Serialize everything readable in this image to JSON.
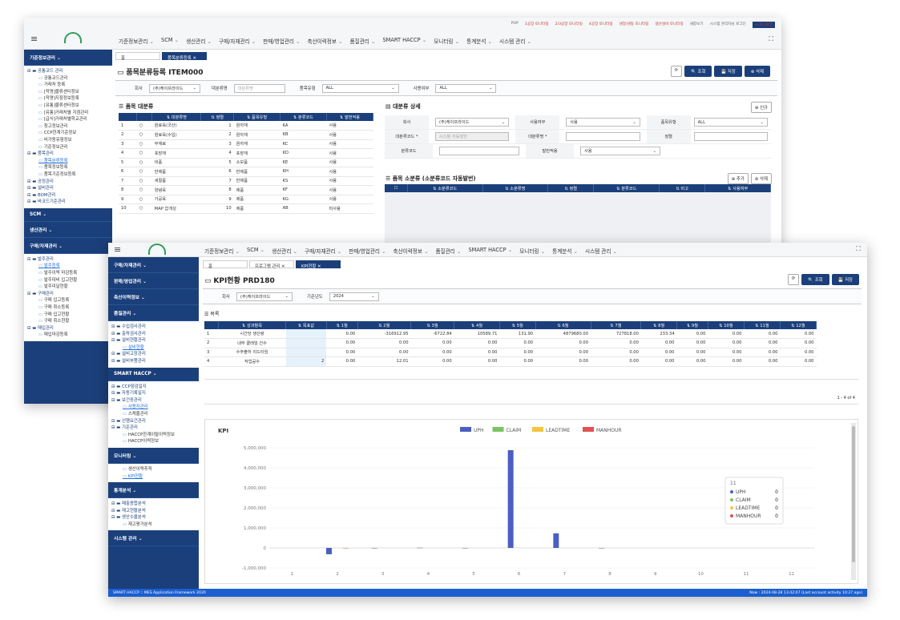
{
  "w1": {
    "links": [
      "POP",
      "1공장 모니터링",
      "2/3공장 모니터링",
      "4공장 모니터링",
      "냉장/냉동 모니터링",
      "생산설비 모니터링"
    ],
    "links_gray": [
      "새창보기",
      "시스템 관리자님 로그인"
    ],
    "logout": "⇥ 로그아웃",
    "nav": [
      "기준정보관리",
      "SCM",
      "생산관리",
      "구매/자재관리",
      "판매/영업관리",
      "축산이력정보",
      "품질관리",
      "SMART HACCP",
      "모니터링",
      "통계분석",
      "시스템 관리"
    ],
    "sidebar_sections": [
      "기준정보관리",
      "SCM",
      "생산관리",
      "구매/자재관리"
    ],
    "tree": [
      {
        "t": "f",
        "l": "공통코드 관리"
      },
      {
        "t": "c",
        "l": "공통코드관리"
      },
      {
        "t": "c",
        "l": "거래처 등록"
      },
      {
        "t": "c",
        "l": "[작명]물류센터정보"
      },
      {
        "t": "c",
        "l": "[작명]지점정보등록"
      },
      {
        "t": "c",
        "l": "[유통]물류센터정보"
      },
      {
        "t": "c",
        "l": "[유통]거래처별 지점관리"
      },
      {
        "t": "c",
        "l": "[급식]거래처별학교관리"
      },
      {
        "t": "c",
        "l": "창고정보관리"
      },
      {
        "t": "c",
        "l": "CCP한계기준정보"
      },
      {
        "t": "c",
        "l": "비가동유형정보"
      },
      {
        "t": "c",
        "l": "기준정보관리"
      },
      {
        "t": "f",
        "l": "품목관리"
      },
      {
        "t": "c",
        "l": "품목분류등록",
        "a": 1
      },
      {
        "t": "c",
        "l": "품목정보등록"
      },
      {
        "t": "c",
        "l": "품목기준정보등록"
      },
      {
        "t": "f",
        "l": "공정관리"
      },
      {
        "t": "f",
        "l": "설비관리"
      },
      {
        "t": "f",
        "l": "BOM관리"
      },
      {
        "t": "f",
        "l": "바코드기준관리"
      }
    ],
    "tree2": [
      {
        "t": "f",
        "l": "발주관리"
      },
      {
        "t": "c",
        "l": "발주등록",
        "a": 1
      },
      {
        "t": "c",
        "l": "발주이력 마감등록"
      },
      {
        "t": "c",
        "l": "발주대비 입고현황"
      },
      {
        "t": "c",
        "l": "발주미달현황"
      },
      {
        "t": "f",
        "l": "구매관리"
      },
      {
        "t": "c",
        "l": "구매 입고등록"
      },
      {
        "t": "c",
        "l": "구매 취소등록"
      },
      {
        "t": "c",
        "l": "구매 입고현황"
      },
      {
        "t": "c",
        "l": "구매 취소현황"
      },
      {
        "t": "f",
        "l": "매입관리"
      },
      {
        "t": "c",
        "l": "매입마감등록"
      }
    ],
    "tabs": [
      "홈",
      "품목분류등록  ✕"
    ],
    "title": "품목분류등록 ITEM000",
    "btn_search": "🔍 조회",
    "btn_save": "💾 저장",
    "btn_del": "⊗ 삭제",
    "f_company": "회사",
    "f_company_val": "(주)케이프라이드",
    "f_major": "대분류명",
    "f_major_ph": "대분류명",
    "f_type": "품목유형",
    "f_type_val": "ALL",
    "f_use": "사용여부",
    "f_use_val": "ALL",
    "grid_title": "품목 대분류",
    "grid_cols": [
      "대분류명",
      "정렬",
      "품목유형",
      "분류코드",
      "발번적용"
    ],
    "grid_rows": [
      [
        "1",
        "원료육(국산)",
        "1",
        "원자재",
        "KA",
        "사용"
      ],
      [
        "2",
        "원료육(수입)",
        "2",
        "원자재",
        "KB",
        "사용"
      ],
      [
        "3",
        "부재료",
        "3",
        "원자재",
        "KC",
        "사용"
      ],
      [
        "4",
        "포장재",
        "4",
        "포장재",
        "KD",
        "사용"
      ],
      [
        "5",
        "비품",
        "5",
        "소모품",
        "KE",
        "사용"
      ],
      [
        "6",
        "반제품",
        "6",
        "반제품",
        "KH",
        "사용"
      ],
      [
        "7",
        "세절품",
        "7",
        "반제품",
        "KS",
        "사용"
      ],
      [
        "8",
        "양념육",
        "8",
        "제품",
        "KF",
        "사용"
      ],
      [
        "9",
        "가공육",
        "9",
        "제품",
        "KG",
        "사용"
      ],
      [
        "10",
        "MAP 압개성",
        "10",
        "제품",
        "AB",
        "미사용"
      ]
    ],
    "detail_title": "대분류 상세",
    "btn_new": "⊕ 신규",
    "d_company": "회사",
    "d_company_val": "(주)케이프라이드",
    "d_use": "사용여부",
    "d_use_val": "사용",
    "d_type": "품목유형",
    "d_type_val": "ALL",
    "d_code": "대분류코드 *",
    "d_code_ph": "시스템 자동발번",
    "d_name": "대분류명 *",
    "d_sort": "정렬",
    "d_cat": "분류코드",
    "d_num": "발번적용",
    "d_num_val": "사용",
    "sub_title": "품목 소분류 (소분류코드 자동발번)",
    "btn_add": "⊕ 추가",
    "btn_del2": "⊗ 삭제",
    "sub_cols": [
      "소분류코드",
      "소분류명",
      "정렬",
      "분류코드",
      "비고",
      "사용여부"
    ]
  },
  "w2": {
    "nav": [
      "기준정보관리",
      "SCM",
      "생산관리",
      "구매/자재관리",
      "판매/영업관리",
      "축산이력정보",
      "품질관리",
      "SMART HACCP",
      "모니터링",
      "통계분석",
      "시스템 관리"
    ],
    "side": [
      {
        "s": "구매/자재관리"
      },
      {
        "s": "판매/영업관리"
      },
      {
        "s": "축산이력정보"
      },
      {
        "s": "품질관리"
      },
      {
        "tree": [
          {
            "t": "f",
            "l": "수입검사관리"
          },
          {
            "t": "f",
            "l": "출하검사관리"
          },
          {
            "t": "f",
            "l": "설비현황관리"
          },
          {
            "t": "c",
            "l": "설비현황",
            "a": 1
          },
          {
            "t": "f",
            "l": "설비고장관리"
          },
          {
            "t": "f",
            "l": "설비부품관리"
          }
        ]
      },
      {
        "s": "SMART HACCP"
      },
      {
        "tree": [
          {
            "t": "f",
            "l": "CCP점검일지"
          },
          {
            "t": "f",
            "l": "자동기록일지"
          },
          {
            "t": "f",
            "l": "보건증관리"
          },
          {
            "t": "c",
            "l": "사용자관리",
            "a": 1
          },
          {
            "t": "c",
            "l": "스케줄관리"
          },
          {
            "t": "f",
            "l": "선행요건관리"
          },
          {
            "t": "f",
            "l": "기준관리"
          },
          {
            "t": "c",
            "l": "HACCP한계이탈이력정보"
          },
          {
            "t": "c",
            "l": "HACCP이력정보"
          }
        ]
      },
      {
        "s": "모니터링"
      },
      {
        "tree": [
          {
            "t": "c",
            "l": "생산이력추적"
          },
          {
            "t": "c",
            "l": "KPI현황",
            "a": 1
          }
        ]
      },
      {
        "s": "통계분석"
      },
      {
        "tree": [
          {
            "t": "f",
            "l": "매출종합분석"
          },
          {
            "t": "f",
            "l": "재고현황분석"
          },
          {
            "t": "f",
            "l": "생산수율분석"
          },
          {
            "t": "c",
            "l": "재고평가분석"
          }
        ]
      },
      {
        "s": "시스템 관리"
      }
    ],
    "tabs": [
      "홈",
      "프로그램 관리  ✕",
      "KPI현황  ✕"
    ],
    "title": "KPI현황 PRD180",
    "btn_search": "🔍 조회",
    "btn_save": "💾 저장",
    "f_company": "회사",
    "f_company_val": "(주)케이프라이드",
    "f_year": "기준년도",
    "f_year_val": "2024",
    "grid_title": "목록",
    "cols": [
      "성과항목",
      "목표값",
      "1월",
      "2월",
      "3월",
      "4월",
      "5월",
      "6월",
      "7월",
      "8월",
      "9월",
      "10월",
      "11월",
      "12월"
    ],
    "rows": [
      [
        "1",
        "시간당 생산량",
        "",
        "0.00",
        "-316912.95",
        "-6722.84",
        "10589.71",
        "131.90",
        "4879680.00",
        "727818.00",
        "233.34",
        "0.00",
        "0.00",
        "0.00",
        "0.00"
      ],
      [
        "2",
        "내부 클레임 건수",
        "",
        "0.00",
        "0.00",
        "0.00",
        "0.00",
        "0.00",
        "0.00",
        "0.00",
        "0.00",
        "0.00",
        "0.00",
        "0.00",
        "0.00"
      ],
      [
        "3",
        "수주출하 리드타임",
        "",
        "0.00",
        "0.00",
        "0.00",
        "0.00",
        "0.00",
        "0.00",
        "0.00",
        "0.00",
        "0.00",
        "0.00",
        "0.00",
        "0.00"
      ],
      [
        "4",
        "작업공수",
        "2",
        "0.00",
        "12.01",
        "0.00",
        "0.00",
        "0.00",
        "0.00",
        "0.00",
        "0.00",
        "0.00",
        "0.00",
        "0.00",
        "0.00"
      ]
    ],
    "pager": "1 - 4 of 4",
    "status_left": "SMART HACCP :: MES Application Framework 2020",
    "status_right": "Now : 2024-08-28 13:42:07 (Last account activity 10:27 ago)"
  },
  "chart_data": {
    "type": "bar",
    "title": "KPI",
    "categories": [
      "1",
      "2",
      "3",
      "4",
      "5",
      "6",
      "7",
      "8",
      "9",
      "10",
      "11",
      "12"
    ],
    "series": [
      {
        "name": "UPH",
        "color": "#4a5fc1",
        "values": [
          0,
          -316912.95,
          -6722.84,
          10589.71,
          131.9,
          4879680.0,
          727818.0,
          233.34,
          0,
          0,
          0,
          0
        ]
      },
      {
        "name": "CLAIM",
        "color": "#7cc464",
        "values": [
          0,
          0,
          0,
          0,
          0,
          0,
          0,
          0,
          0,
          0,
          0,
          0
        ]
      },
      {
        "name": "LEADTIME",
        "color": "#f5c542",
        "values": [
          0,
          0,
          0,
          0,
          0,
          0,
          0,
          0,
          0,
          0,
          0,
          0
        ]
      },
      {
        "name": "MANHOUR",
        "color": "#e05252",
        "values": [
          0,
          12.01,
          0,
          0,
          0,
          0,
          0,
          0,
          0,
          0,
          0,
          0
        ]
      }
    ],
    "ylim": [
      -1000000,
      5000000
    ],
    "yticks": [
      "5,000,000",
      "4,000,000",
      "3,000,000",
      "2,000,000",
      "1,000,000",
      "0",
      "-1,000,000"
    ],
    "legend_position": "top-center",
    "tooltip": {
      "title": "11",
      "items": [
        {
          "name": "UPH",
          "value": "0"
        },
        {
          "name": "CLAIM",
          "value": "0"
        },
        {
          "name": "LEADTIME",
          "value": "0"
        },
        {
          "name": "MANHOUR",
          "value": "0"
        }
      ]
    }
  }
}
